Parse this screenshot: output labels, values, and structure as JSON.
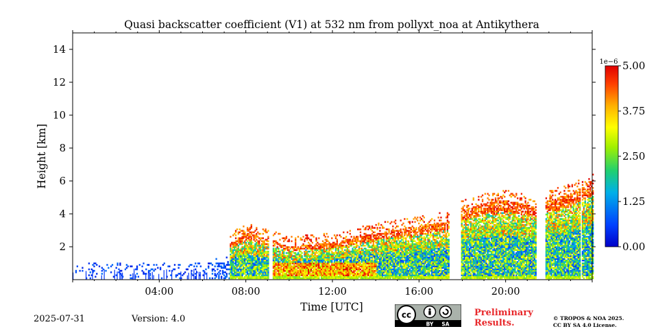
{
  "chart_data": {
    "type": "heatmap",
    "title": "Quasi backscatter coefficient (V1) at 532 nm from pollyxt_noa at Antikythera",
    "xlabel": "Time [UTC]",
    "ylabel": "Height [km]",
    "xlim": [
      0,
      24
    ],
    "ylim": [
      0,
      15
    ],
    "x_ticks": [
      {
        "value": 4,
        "label": "04:00"
      },
      {
        "value": 8,
        "label": "08:00"
      },
      {
        "value": 12,
        "label": "12:00"
      },
      {
        "value": 16,
        "label": "16:00"
      },
      {
        "value": 20,
        "label": "20:00"
      }
    ],
    "y_ticks": [
      {
        "value": 2,
        "label": "2"
      },
      {
        "value": 4,
        "label": "4"
      },
      {
        "value": 6,
        "label": "6"
      },
      {
        "value": 8,
        "label": "8"
      },
      {
        "value": 10,
        "label": "10"
      },
      {
        "value": 12,
        "label": "12"
      },
      {
        "value": 14,
        "label": "14"
      }
    ],
    "colorbar": {
      "multiplier_label": "1e−6",
      "range": [
        0,
        5.0
      ],
      "ticks": [
        {
          "value": 0.0,
          "label": "0.00"
        },
        {
          "value": 1.25,
          "label": "1.25"
        },
        {
          "value": 2.5,
          "label": "2.50"
        },
        {
          "value": 3.75,
          "label": "3.75"
        },
        {
          "value": 5.0,
          "label": "5.00"
        }
      ],
      "colormap": "jet"
    },
    "data_gaps_hours": [
      [
        9.05,
        9.2
      ],
      [
        17.4,
        17.9
      ],
      [
        21.4,
        21.8
      ],
      [
        23.4,
        23.5
      ]
    ],
    "signal_top_km": [
      {
        "t": 0.5,
        "h": 1.2
      },
      {
        "t": 2.0,
        "h": 1.0
      },
      {
        "t": 4.0,
        "h": 1.0
      },
      {
        "t": 6.0,
        "h": 1.3
      },
      {
        "t": 7.0,
        "h": 2.0
      },
      {
        "t": 8.0,
        "h": 2.8
      },
      {
        "t": 9.0,
        "h": 2.4
      },
      {
        "t": 10.0,
        "h": 2.0
      },
      {
        "t": 12.0,
        "h": 2.2
      },
      {
        "t": 14.0,
        "h": 2.8
      },
      {
        "t": 16.0,
        "h": 3.2
      },
      {
        "t": 17.3,
        "h": 3.5
      },
      {
        "t": 18.0,
        "h": 4.2
      },
      {
        "t": 19.0,
        "h": 4.6
      },
      {
        "t": 20.0,
        "h": 4.8
      },
      {
        "t": 21.3,
        "h": 4.4
      },
      {
        "t": 22.0,
        "h": 4.8
      },
      {
        "t": 23.0,
        "h": 5.2
      },
      {
        "t": 24.0,
        "h": 6.0
      }
    ]
  },
  "footer": {
    "date": "2025-07-31",
    "version": "Version: 4.0",
    "preliminary_line1": "Preliminary",
    "preliminary_line2": "Results.",
    "copyright_line1": "© TROPOS & NOA 2025.",
    "copyright_line2": "CC BY SA 4.0 License.",
    "cc_badge": {
      "cc": "cc",
      "by": "BY",
      "sa": "SA"
    }
  }
}
